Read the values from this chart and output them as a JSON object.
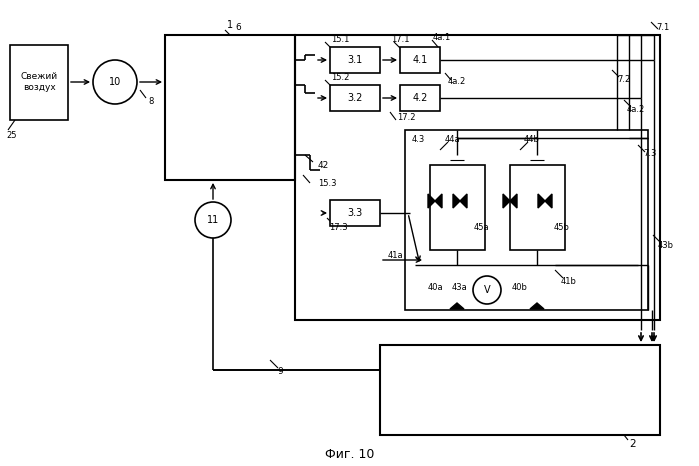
{
  "background_color": "#ffffff",
  "line_color": "#000000",
  "labels": {
    "fresh_air": "Свежий\nвоздух",
    "fig": "Фиг. 10",
    "n1": "1",
    "n2": "2",
    "n6": "6",
    "n7_1": "7.1",
    "n7_2": "7.2",
    "n7_3": "7.3",
    "n8": "8",
    "n9": "9",
    "n10": "10",
    "n11": "11",
    "n15_1": "15.1",
    "n15_2": "15.2",
    "n15_3": "15.3",
    "n17_1": "17.1",
    "n17_2": "17.2",
    "n17_3": "17.3",
    "n25": "25",
    "n3_1": "3.1",
    "n3_2": "3.2",
    "n3_3": "3.3",
    "n4_1": "4.1",
    "n4a1": "4a.1",
    "n4a2": "4a.2",
    "n4_2": "4.2",
    "n4_3": "4.3",
    "n40a": "40a",
    "n40b": "40b",
    "n41a": "41a",
    "n41b": "41b",
    "n42": "42",
    "n43a": "43a",
    "n43b": "43b",
    "n44a": "44a",
    "n44b": "44b",
    "n45a": "45a",
    "n45b": "45b",
    "nV": "V"
  }
}
